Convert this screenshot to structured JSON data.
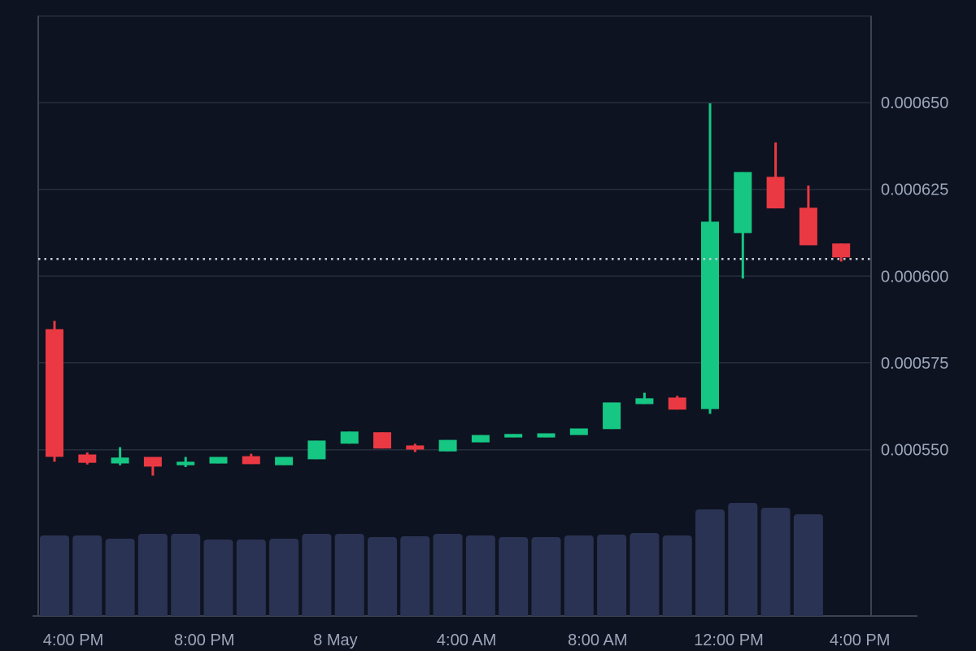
{
  "page": {
    "background": "#0d1320"
  },
  "chart": {
    "up_color": "#16c784",
    "down_color": "#ea3943",
    "volume_bar_color": "#2a3353",
    "grid_color": "#262d3d",
    "border_color": "#3b4254",
    "axis_label_color": "#9da6ba",
    "current_price_dot_color": "#c9cdd6"
  },
  "chart_data": {
    "type": "candlestick",
    "title": "",
    "xlabel": "",
    "ylabel": "",
    "x_axis_labels": [
      {
        "label": "4:00 PM",
        "candle_index": 0
      },
      {
        "label": "8:00 PM",
        "candle_index": 4
      },
      {
        "label": "8 May",
        "candle_index": 8
      },
      {
        "label": "4:00 AM",
        "candle_index": 12
      },
      {
        "label": "8:00 AM",
        "candle_index": 16
      },
      {
        "label": "12:00 PM",
        "candle_index": 20
      },
      {
        "label": "4:00 PM",
        "candle_index": 24
      }
    ],
    "y_axis_ticks": [
      {
        "price": 0.00065,
        "label": "0.000650"
      },
      {
        "price": 0.000625,
        "label": "0.000625"
      },
      {
        "price": 0.0006,
        "label": "0.000600"
      },
      {
        "price": 0.000575,
        "label": "0.000575"
      },
      {
        "price": 0.00055,
        "label": "0.000550"
      }
    ],
    "y_gridline_prices": [
      0.000675,
      0.00065,
      0.000625,
      0.0006,
      0.000575,
      0.00055
    ],
    "ylim": [
      0.000502,
      0.000675
    ],
    "grid": true,
    "legend": "none",
    "current_price": 0.000605,
    "candles": [
      {
        "time": "4:00 PM",
        "o": 0.0005847,
        "h": 0.0005871,
        "l": 0.0005465,
        "c": 0.0005479,
        "v": 99
      },
      {
        "time": "5:00 PM",
        "o": 0.0005486,
        "h": 0.0005492,
        "l": 0.0005457,
        "c": 0.0005462,
        "v": 99
      },
      {
        "time": "6:00 PM",
        "o": 0.000546,
        "h": 0.0005507,
        "l": 0.0005455,
        "c": 0.0005477,
        "v": 95
      },
      {
        "time": "7:00 PM",
        "o": 0.0005479,
        "h": 0.0005479,
        "l": 0.0005425,
        "c": 0.0005451,
        "v": 101
      },
      {
        "time": "8:00 PM",
        "o": 0.0005455,
        "h": 0.0005479,
        "l": 0.000545,
        "c": 0.0005465,
        "v": 101
      },
      {
        "time": "9:00 PM",
        "o": 0.000546,
        "h": 0.0005479,
        "l": 0.000546,
        "c": 0.0005479,
        "v": 94
      },
      {
        "time": "10:00 PM",
        "o": 0.0005481,
        "h": 0.0005488,
        "l": 0.0005458,
        "c": 0.0005458,
        "v": 94
      },
      {
        "time": "11:00 PM",
        "o": 0.0005455,
        "h": 0.0005479,
        "l": 0.0005455,
        "c": 0.0005479,
        "v": 95
      },
      {
        "time": "12:00 AM",
        "o": 0.0005472,
        "h": 0.0005526,
        "l": 0.0005472,
        "c": 0.0005526,
        "v": 101
      },
      {
        "time": "1:00 AM",
        "o": 0.0005517,
        "h": 0.0005552,
        "l": 0.0005517,
        "c": 0.0005552,
        "v": 101
      },
      {
        "time": "2:00 AM",
        "o": 0.000555,
        "h": 0.000555,
        "l": 0.0005503,
        "c": 0.0005503,
        "v": 97
      },
      {
        "time": "3:00 AM",
        "o": 0.0005512,
        "h": 0.0005517,
        "l": 0.0005493,
        "c": 0.00055,
        "v": 98
      },
      {
        "time": "4:00 AM",
        "o": 0.0005495,
        "h": 0.0005528,
        "l": 0.0005495,
        "c": 0.0005528,
        "v": 101
      },
      {
        "time": "5:00 AM",
        "o": 0.0005521,
        "h": 0.0005542,
        "l": 0.0005521,
        "c": 0.0005542,
        "v": 99
      },
      {
        "time": "6:00 AM",
        "o": 0.0005535,
        "h": 0.0005545,
        "l": 0.0005535,
        "c": 0.0005545,
        "v": 97
      },
      {
        "time": "7:00 AM",
        "o": 0.0005535,
        "h": 0.0005547,
        "l": 0.0005535,
        "c": 0.0005547,
        "v": 97
      },
      {
        "time": "8:00 AM",
        "o": 0.0005542,
        "h": 0.0005561,
        "l": 0.0005542,
        "c": 0.0005561,
        "v": 99
      },
      {
        "time": "9:00 AM",
        "o": 0.0005559,
        "h": 0.0005636,
        "l": 0.0005559,
        "c": 0.0005636,
        "v": 100
      },
      {
        "time": "10:00 AM",
        "o": 0.0005631,
        "h": 0.0005664,
        "l": 0.0005631,
        "c": 0.0005648,
        "v": 102
      },
      {
        "time": "11:00 AM",
        "o": 0.000565,
        "h": 0.0005655,
        "l": 0.0005615,
        "c": 0.0005615,
        "v": 99
      },
      {
        "time": "12:00 PM",
        "o": 0.0005617,
        "h": 0.0006498,
        "l": 0.0005603,
        "c": 0.0006157,
        "v": 131
      },
      {
        "time": "1:00 PM",
        "o": 0.0006124,
        "h": 0.00063,
        "l": 0.0005993,
        "c": 0.00063,
        "v": 139
      },
      {
        "time": "2:00 PM",
        "o": 0.0006286,
        "h": 0.0006385,
        "l": 0.0006195,
        "c": 0.0006195,
        "v": 133
      },
      {
        "time": "3:00 PM",
        "o": 0.0006197,
        "h": 0.0006261,
        "l": 0.0006089,
        "c": 0.0006089,
        "v": 125
      },
      {
        "time": "4:00 PM",
        "o": 0.0006094,
        "h": 0.0006094,
        "l": 0.0006042,
        "c": 0.0006054,
        "v": 0
      }
    ],
    "volume_note": "relative units read from bar heights; last candle has no volume bar"
  }
}
